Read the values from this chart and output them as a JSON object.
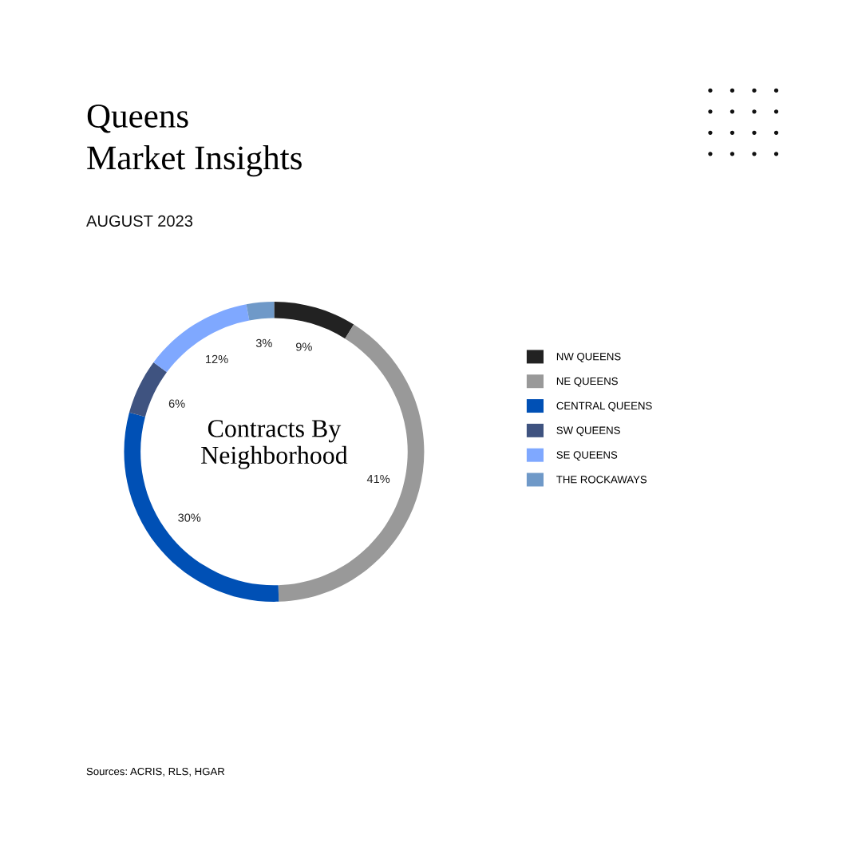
{
  "chart_data": {
    "type": "donut",
    "title": "Queens\nMarket Insights",
    "subtitle": "AUGUST 2023",
    "categories": [
      "NW QUEENS",
      "NE QUEENS",
      "CENTRAL QUEENS",
      "SW QUEENS",
      "SE QUEENS",
      "THE ROCKAWAYS"
    ],
    "values": [
      9,
      41,
      30,
      6,
      12,
      3
    ],
    "colors": [
      "#222222",
      "#999999",
      "#0050b5",
      "#3f5380",
      "#7fa8ff",
      "#6f99c8"
    ],
    "value_labels": [
      "9%",
      "41%",
      "30%",
      "6%",
      "12%",
      "3%"
    ],
    "legend": "right",
    "annotations": [
      "Contracts By\nNeighborhood",
      "Sources: ACRIS, RLS, HGAR"
    ]
  }
}
